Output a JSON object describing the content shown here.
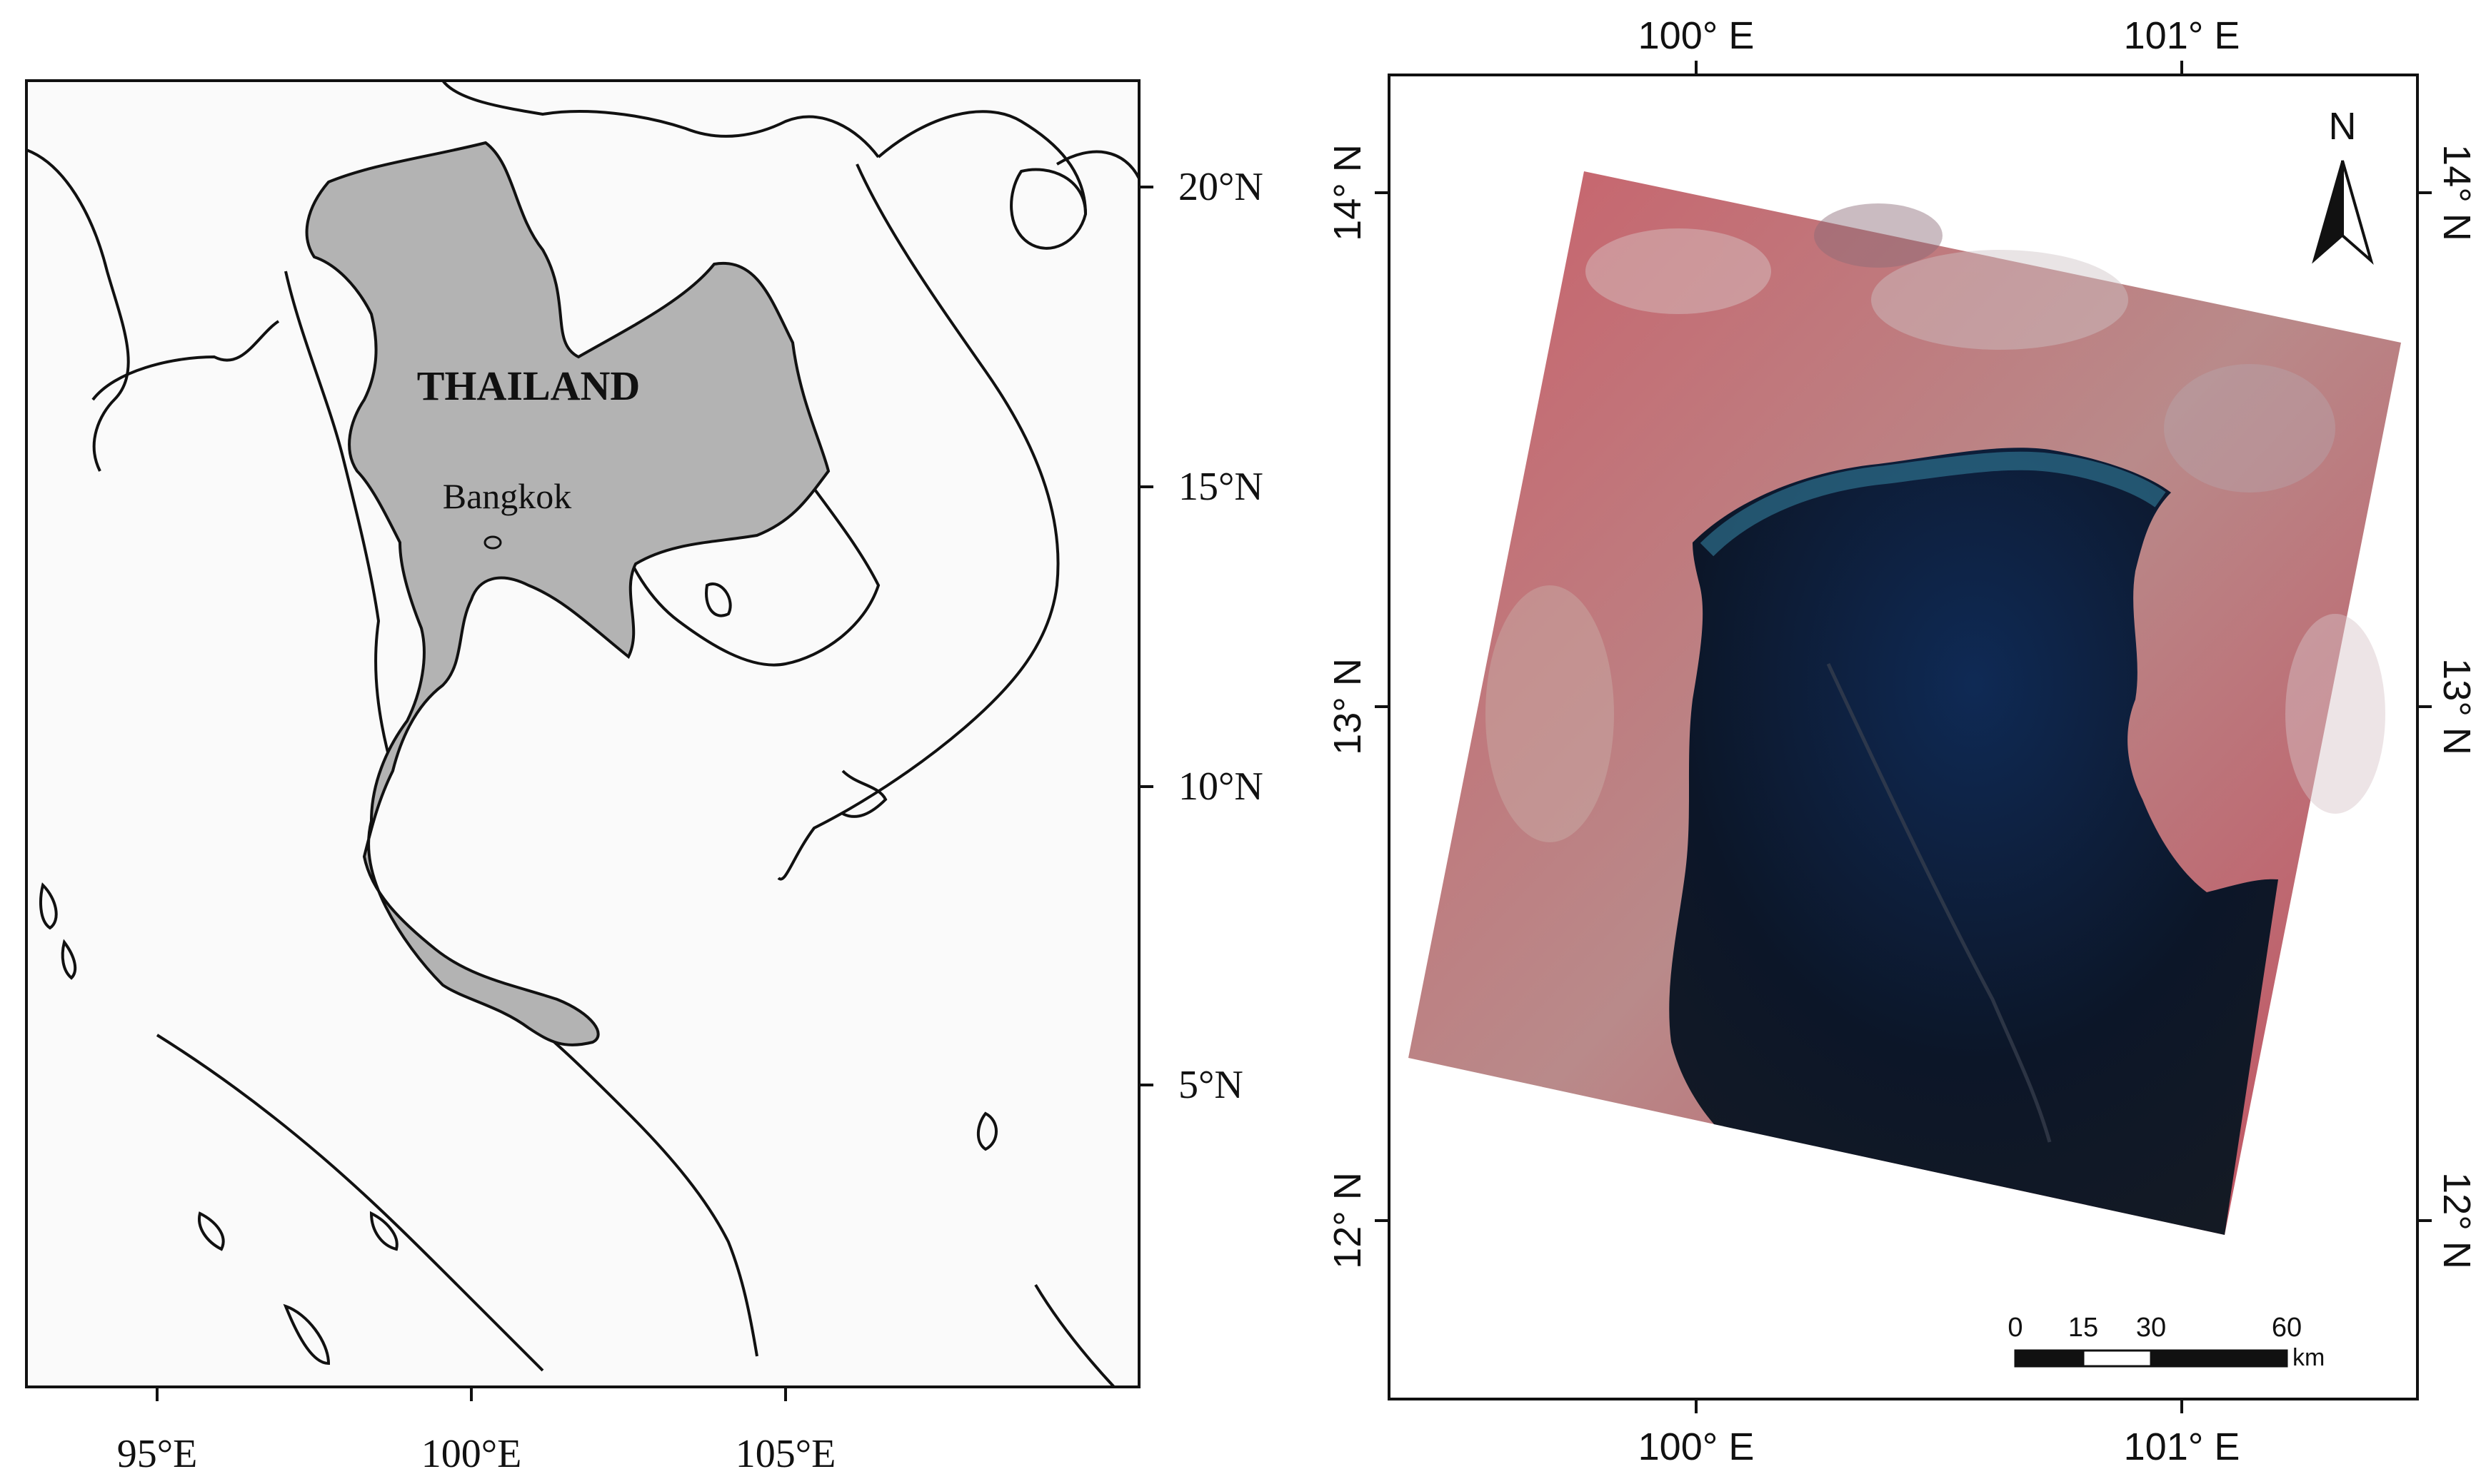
{
  "left_map": {
    "country_label": "THAILAND",
    "city_label": "Bangkok",
    "lat_labels": [
      "20°N",
      "15°N",
      "10°N",
      "5°N"
    ],
    "lon_labels": [
      "95°E",
      "100°E",
      "105°E"
    ],
    "colors": {
      "country_fill": "#b3b3b3",
      "background": "#fafafa",
      "line": "#111111"
    }
  },
  "right_map": {
    "top_lon_labels": [
      "100° E",
      "101° E"
    ],
    "bottom_lon_labels": [
      "100° E",
      "101° E"
    ],
    "left_lat_labels": [
      "14° N",
      "13° N",
      "12° N"
    ],
    "right_lat_labels": [
      "14° N",
      "13° N",
      "12° N"
    ],
    "north_label": "N",
    "scale_bar": {
      "ticks": [
        "0",
        "15",
        "30",
        "60"
      ],
      "unit": "km"
    },
    "colors": {
      "land": "#c6505f",
      "water": "#0e1a2e",
      "shallow_water": "#1e4f7a"
    }
  }
}
